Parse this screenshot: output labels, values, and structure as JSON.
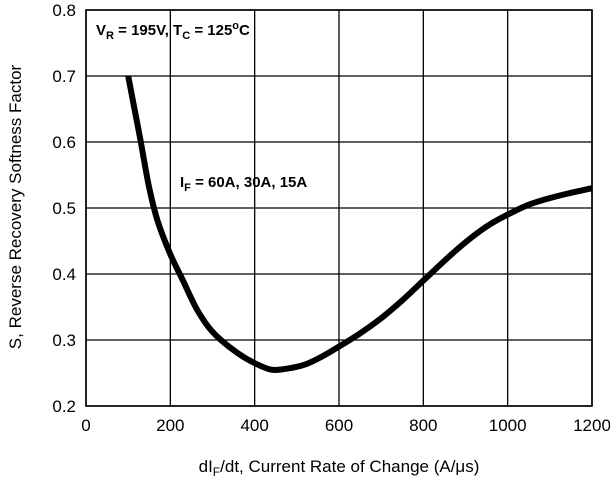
{
  "chart_data": {
    "type": "line",
    "title": "",
    "xlabel": {
      "main": "dI",
      "sub": "F",
      "rest": "/dt, Current Rate of Change (A/μs)"
    },
    "ylabel": "S, Reverse Recovery Softness Factor",
    "xlim": [
      0,
      1200
    ],
    "ylim": [
      0.2,
      0.8
    ],
    "x_ticks": [
      "0",
      "200",
      "400",
      "600",
      "800",
      "1000",
      "1200"
    ],
    "y_ticks": [
      "0.2",
      "0.3",
      "0.4",
      "0.5",
      "0.6",
      "0.7",
      "0.8"
    ],
    "grid": true,
    "legend": "none",
    "annotations": {
      "conditions": {
        "v": "V",
        "v_sub": "R",
        "v_rest": " = 195V, T",
        "t_sub": "C",
        "t_rest": " = 125",
        "deg": "o",
        "unit": "C"
      },
      "current": {
        "i": "I",
        "i_sub": "F",
        "i_rest": " = 60A, 30A, 15A"
      }
    },
    "series": [
      {
        "color": "#000000",
        "points": [
          [
            100,
            0.7
          ],
          [
            115,
            0.65
          ],
          [
            130,
            0.6
          ],
          [
            150,
            0.53
          ],
          [
            170,
            0.48
          ],
          [
            200,
            0.43
          ],
          [
            230,
            0.39
          ],
          [
            260,
            0.35
          ],
          [
            290,
            0.32
          ],
          [
            320,
            0.3
          ],
          [
            360,
            0.28
          ],
          [
            400,
            0.265
          ],
          [
            440,
            0.255
          ],
          [
            480,
            0.257
          ],
          [
            520,
            0.263
          ],
          [
            560,
            0.275
          ],
          [
            600,
            0.29
          ],
          [
            650,
            0.31
          ],
          [
            700,
            0.333
          ],
          [
            750,
            0.36
          ],
          [
            800,
            0.39
          ],
          [
            850,
            0.42
          ],
          [
            900,
            0.448
          ],
          [
            950,
            0.472
          ],
          [
            1000,
            0.49
          ],
          [
            1050,
            0.505
          ],
          [
            1100,
            0.515
          ],
          [
            1150,
            0.523
          ],
          [
            1200,
            0.53
          ]
        ]
      }
    ]
  }
}
